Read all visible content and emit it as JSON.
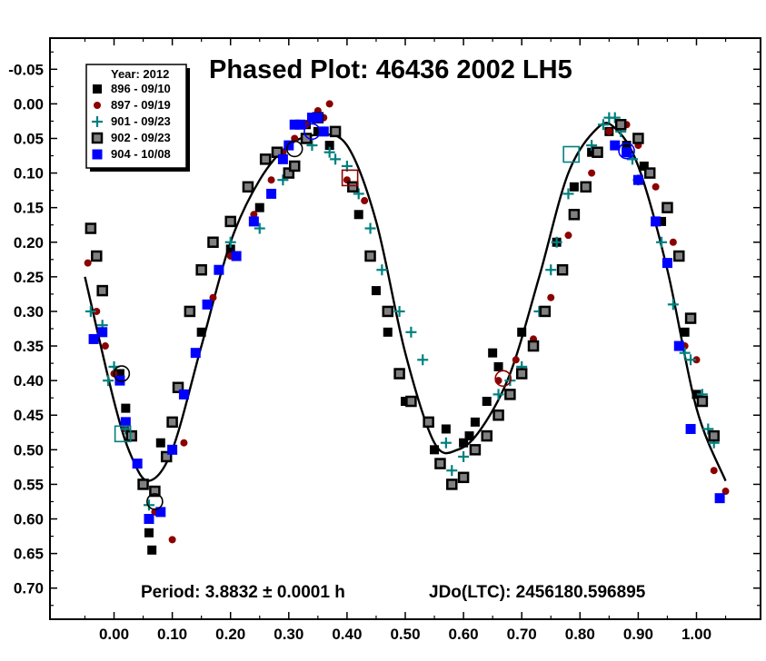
{
  "chart_data": {
    "type": "scatter",
    "title": "Phased Plot: 46436 2002 LH5",
    "footer_left": "Period: 3.8832 ± 0.0001 h",
    "footer_right": "JDo(LTC): 2456180.596895",
    "legend_title": "Year: 2012",
    "legend_placement": "top-left",
    "x_range": [
      -0.11,
      1.11
    ],
    "y_range": [
      -0.095,
      0.745
    ],
    "y_inverted": true,
    "grid": false,
    "x_ticks": [
      "0.00",
      "0.10",
      "0.20",
      "0.30",
      "0.40",
      "0.50",
      "0.60",
      "0.70",
      "0.80",
      "0.90",
      "1.00"
    ],
    "x_tick_values": [
      0,
      0.1,
      0.2,
      0.3,
      0.4,
      0.5,
      0.6,
      0.7,
      0.8,
      0.9,
      1.0
    ],
    "y_ticks": [
      "-0.05",
      "0.00",
      "0.05",
      "0.10",
      "0.15",
      "0.20",
      "0.25",
      "0.30",
      "0.35",
      "0.40",
      "0.45",
      "0.50",
      "0.55",
      "0.60",
      "0.65",
      "0.70"
    ],
    "y_tick_values": [
      -0.05,
      0,
      0.05,
      0.1,
      0.15,
      0.2,
      0.25,
      0.3,
      0.35,
      0.4,
      0.45,
      0.5,
      0.55,
      0.6,
      0.65,
      0.7
    ],
    "series": [
      {
        "name": "896 - 09/10",
        "marker": "square-small",
        "color": "#000000",
        "x": [
          0.01,
          0.02,
          0.06,
          0.065,
          0.08,
          0.12,
          0.15,
          0.2,
          0.25,
          0.3,
          0.33,
          0.35,
          0.37,
          0.42,
          0.45,
          0.47,
          0.5,
          0.55,
          0.57,
          0.6,
          0.61,
          0.62,
          0.64,
          0.65,
          0.66,
          0.7,
          0.76,
          0.79,
          0.82,
          0.85,
          0.88,
          0.91,
          0.94,
          0.98,
          1.0
        ],
        "y": [
          0.39,
          0.44,
          0.62,
          0.645,
          0.49,
          0.42,
          0.33,
          0.21,
          0.15,
          0.06,
          0.03,
          0.04,
          0.06,
          0.16,
          0.27,
          0.33,
          0.43,
          0.5,
          0.47,
          0.49,
          0.48,
          0.46,
          0.43,
          0.36,
          0.38,
          0.33,
          0.2,
          0.12,
          0.07,
          0.04,
          0.06,
          0.09,
          0.17,
          0.33,
          0.42
        ]
      },
      {
        "name": "897 - 09/19",
        "marker": "circle-small",
        "color": "#8b0000",
        "x": [
          -0.045,
          -0.03,
          -0.015,
          0.0,
          0.02,
          0.05,
          0.07,
          0.1,
          0.12,
          0.14,
          0.17,
          0.2,
          0.24,
          0.27,
          0.29,
          0.31,
          0.33,
          0.35,
          0.36,
          0.37,
          0.4,
          0.43,
          0.66,
          0.69,
          0.72,
          0.75,
          0.78,
          0.82,
          0.85,
          0.88,
          0.9,
          0.93,
          0.96,
          0.98,
          1.0,
          1.03,
          1.05
        ],
        "y": [
          0.23,
          0.3,
          0.35,
          0.39,
          0.47,
          0.55,
          0.59,
          0.63,
          0.49,
          0.36,
          0.28,
          0.22,
          0.16,
          0.11,
          0.07,
          0.05,
          0.03,
          0.01,
          0.02,
          0.0,
          0.11,
          0.14,
          0.4,
          0.37,
          0.34,
          0.28,
          0.19,
          0.1,
          0.04,
          0.03,
          0.06,
          0.12,
          0.2,
          0.35,
          0.37,
          0.53,
          0.56
        ]
      },
      {
        "name": "901 - 09/23",
        "marker": "plus",
        "color": "#008080",
        "x": [
          -0.04,
          -0.02,
          -0.01,
          0.0,
          0.02,
          0.06,
          0.2,
          0.25,
          0.29,
          0.34,
          0.37,
          0.38,
          0.4,
          0.42,
          0.44,
          0.46,
          0.49,
          0.51,
          0.53,
          0.57,
          0.58,
          0.6,
          0.66,
          0.68,
          0.7,
          0.73,
          0.75,
          0.76,
          0.78,
          0.82,
          0.84,
          0.85,
          0.86,
          0.87,
          0.89,
          0.9,
          0.94,
          0.96,
          0.98,
          0.99,
          1.01,
          1.02,
          1.03
        ],
        "y": [
          0.3,
          0.32,
          0.4,
          0.38,
          0.47,
          0.58,
          0.2,
          0.18,
          0.11,
          0.06,
          0.07,
          0.08,
          0.09,
          0.13,
          0.18,
          0.24,
          0.3,
          0.33,
          0.37,
          0.49,
          0.53,
          0.51,
          0.42,
          0.4,
          0.38,
          0.3,
          0.24,
          0.2,
          0.13,
          0.06,
          0.03,
          0.02,
          0.02,
          0.04,
          0.08,
          0.11,
          0.2,
          0.29,
          0.36,
          0.37,
          0.42,
          0.47,
          0.49
        ]
      },
      {
        "name": "902 - 09/23",
        "marker": "square-large",
        "color": "#808080",
        "x": [
          -0.04,
          -0.03,
          -0.02,
          0.03,
          0.05,
          0.07,
          0.09,
          0.1,
          0.11,
          0.13,
          0.15,
          0.17,
          0.2,
          0.23,
          0.26,
          0.28,
          0.3,
          0.31,
          0.33,
          0.35,
          0.38,
          0.41,
          0.44,
          0.47,
          0.49,
          0.51,
          0.54,
          0.56,
          0.58,
          0.6,
          0.62,
          0.64,
          0.66,
          0.68,
          0.7,
          0.72,
          0.74,
          0.77,
          0.79,
          0.81,
          0.83,
          0.87,
          0.9,
          0.92,
          0.95,
          0.97,
          0.99,
          1.01,
          1.03
        ],
        "y": [
          0.18,
          0.22,
          0.27,
          0.48,
          0.55,
          0.56,
          0.51,
          0.46,
          0.41,
          0.3,
          0.24,
          0.2,
          0.17,
          0.12,
          0.08,
          0.07,
          0.1,
          0.09,
          0.05,
          0.02,
          0.04,
          0.12,
          0.22,
          0.3,
          0.39,
          0.43,
          0.46,
          0.52,
          0.55,
          0.54,
          0.5,
          0.48,
          0.45,
          0.42,
          0.39,
          0.35,
          0.3,
          0.24,
          0.16,
          0.12,
          0.07,
          0.03,
          0.05,
          0.1,
          0.15,
          0.22,
          0.31,
          0.43,
          0.48
        ]
      },
      {
        "name": "904 - 10/08",
        "marker": "square-medium",
        "color": "#0000ff",
        "x": [
          -0.035,
          -0.02,
          0.01,
          0.02,
          0.04,
          0.06,
          0.08,
          0.1,
          0.12,
          0.14,
          0.16,
          0.18,
          0.21,
          0.24,
          0.27,
          0.29,
          0.3,
          0.31,
          0.32,
          0.34,
          0.35,
          0.36,
          0.86,
          0.88,
          0.9,
          0.93,
          0.95,
          0.97,
          0.99,
          1.04
        ],
        "y": [
          0.34,
          0.33,
          0.4,
          0.46,
          0.52,
          0.6,
          0.59,
          0.5,
          0.42,
          0.36,
          0.29,
          0.24,
          0.22,
          0.17,
          0.13,
          0.08,
          0.06,
          0.03,
          0.03,
          0.02,
          0.02,
          0.04,
          0.06,
          0.07,
          0.11,
          0.17,
          0.23,
          0.35,
          0.47,
          0.57
        ]
      }
    ],
    "fit_curve": {
      "x": [
        -0.05,
        0.0,
        0.03,
        0.06,
        0.1,
        0.15,
        0.2,
        0.25,
        0.3,
        0.35,
        0.4,
        0.45,
        0.5,
        0.55,
        0.59,
        0.63,
        0.68,
        0.73,
        0.78,
        0.83,
        0.86,
        0.9,
        0.95,
        1.0,
        1.05
      ],
      "y": [
        0.25,
        0.43,
        0.51,
        0.545,
        0.5,
        0.35,
        0.2,
        0.11,
        0.06,
        0.045,
        0.06,
        0.17,
        0.36,
        0.49,
        0.5,
        0.47,
        0.39,
        0.25,
        0.1,
        0.035,
        0.035,
        0.09,
        0.24,
        0.44,
        0.545
      ]
    },
    "highlighted_points": [
      {
        "x": 0.013,
        "y": 0.39,
        "marker": "circle-open",
        "color": "#000000"
      },
      {
        "x": 0.015,
        "y": 0.477,
        "marker": "square-open",
        "color": "#008080"
      },
      {
        "x": 0.07,
        "y": 0.575,
        "marker": "circle-open",
        "color": "#000000"
      },
      {
        "x": 0.405,
        "y": 0.107,
        "marker": "square-open",
        "color": "#8b0000"
      },
      {
        "x": 0.31,
        "y": 0.065,
        "marker": "circle-open",
        "color": "#000000"
      },
      {
        "x": 0.34,
        "y": 0.04,
        "marker": "circle-open",
        "color": "#0000ff"
      },
      {
        "x": 0.668,
        "y": 0.397,
        "marker": "circle-open",
        "color": "#8b0000"
      },
      {
        "x": 0.785,
        "y": 0.073,
        "marker": "square-open",
        "color": "#008080"
      },
      {
        "x": 0.88,
        "y": 0.068,
        "marker": "circle-open",
        "color": "#0000ff"
      }
    ]
  }
}
